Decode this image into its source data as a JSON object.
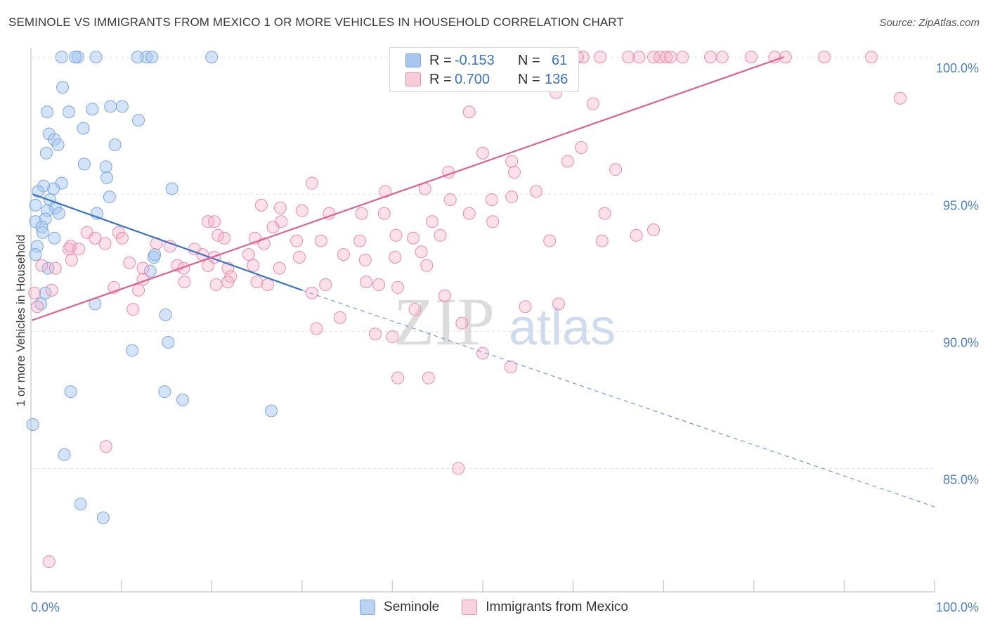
{
  "title": "SEMINOLE VS IMMIGRANTS FROM MEXICO 1 OR MORE VEHICLES IN HOUSEHOLD CORRELATION CHART",
  "source": "Source: ZipAtlas.com",
  "watermark": {
    "zip": "ZIP",
    "atlas": "atlas"
  },
  "legend_top": {
    "rows": [
      {
        "r_label": "R =",
        "r_value": "-0.153",
        "n_label": "N =",
        "n_value": "61",
        "color": "#a9c7ee"
      },
      {
        "r_label": "R =",
        "r_value": "0.700",
        "n_label": "N =",
        "n_value": "136",
        "color": "#f5b5c8"
      }
    ]
  },
  "legend_bottom": [
    {
      "label": "Seminole",
      "color": "#a9c7ee"
    },
    {
      "label": "Immigrants from Mexico",
      "color": "#f5b5c8"
    }
  ],
  "chart_data": {
    "type": "scatter",
    "title": "SEMINOLE VS IMMIGRANTS FROM MEXICO 1 OR MORE VEHICLES IN HOUSEHOLD CORRELATION CHART",
    "xlabel": "",
    "ylabel": "1 or more Vehicles in Household",
    "xlim": [
      0,
      100
    ],
    "ylim": [
      80.5,
      100.8
    ],
    "x_tick_labels": [
      "0.0%",
      "100.0%"
    ],
    "y_ticks": [
      85,
      90,
      95,
      100
    ],
    "y_tick_labels": [
      "85.0%",
      "90.0%",
      "95.0%",
      "100.0%"
    ],
    "grid": true,
    "series": [
      {
        "name": "Seminole",
        "color": "#7aa7e0",
        "points": [
          [
            3.4,
            100
          ],
          [
            5.2,
            100
          ],
          [
            4.9,
            100
          ],
          [
            12.8,
            100
          ],
          [
            20,
            100
          ],
          [
            7.2,
            100
          ],
          [
            3.5,
            98.9
          ],
          [
            1.8,
            98
          ],
          [
            4.2,
            98
          ],
          [
            6.8,
            98.1
          ],
          [
            8.8,
            98.2
          ],
          [
            10.1,
            98.2
          ],
          [
            11.9,
            97.7
          ],
          [
            5.8,
            97.4
          ],
          [
            2,
            97.2
          ],
          [
            2.6,
            97
          ],
          [
            3,
            96.8
          ],
          [
            9.3,
            96.8
          ],
          [
            1.7,
            96.5
          ],
          [
            5.9,
            96.1
          ],
          [
            8.3,
            96
          ],
          [
            8.4,
            95.6
          ],
          [
            3.4,
            95.4
          ],
          [
            2.5,
            95.2
          ],
          [
            1.4,
            95.3
          ],
          [
            0.8,
            95.1
          ],
          [
            15.6,
            95.2
          ],
          [
            8.7,
            94.9
          ],
          [
            2.1,
            94.8
          ],
          [
            0.5,
            94.6
          ],
          [
            2.7,
            94.5
          ],
          [
            1.8,
            94.4
          ],
          [
            3.1,
            94.3
          ],
          [
            7.3,
            94.3
          ],
          [
            1.6,
            94.1
          ],
          [
            0.5,
            94
          ],
          [
            1.2,
            93.8
          ],
          [
            1.3,
            93.6
          ],
          [
            2.6,
            93.4
          ],
          [
            0.7,
            93.1
          ],
          [
            0.5,
            92.8
          ],
          [
            13.6,
            92.7
          ],
          [
            13.7,
            92.8
          ],
          [
            1.9,
            92.3
          ],
          [
            13.2,
            92.2
          ],
          [
            1.6,
            91.4
          ],
          [
            1.1,
            91
          ],
          [
            7.1,
            91
          ],
          [
            14.9,
            90.6
          ],
          [
            15.2,
            89.6
          ],
          [
            11.2,
            89.3
          ],
          [
            4.4,
            87.8
          ],
          [
            14.8,
            87.8
          ],
          [
            16.8,
            87.5
          ],
          [
            26.6,
            87.1
          ],
          [
            0.2,
            86.6
          ],
          [
            3.7,
            85.5
          ],
          [
            5.5,
            83.7
          ],
          [
            8,
            83.2
          ],
          [
            11.8,
            100
          ],
          [
            13.4,
            100
          ]
        ],
        "trend": {
          "x0": 0.2,
          "y0": 95,
          "x1": 30,
          "y1": 91.5,
          "dash_x1": 100,
          "dash_y1": 83.6
        }
      },
      {
        "name": "Immigrants from Mexico",
        "color": "#ec8aa9",
        "points": [
          [
            47.5,
            100
          ],
          [
            48.2,
            100
          ],
          [
            55.6,
            100
          ],
          [
            57.8,
            100
          ],
          [
            60.5,
            100
          ],
          [
            61.1,
            100
          ],
          [
            66.1,
            100
          ],
          [
            67.3,
            100
          ],
          [
            68.9,
            100
          ],
          [
            69.6,
            100
          ],
          [
            70.3,
            100
          ],
          [
            70.8,
            100
          ],
          [
            72.1,
            100
          ],
          [
            75.2,
            100
          ],
          [
            76.5,
            100
          ],
          [
            79.7,
            100
          ],
          [
            83.5,
            100
          ],
          [
            87.8,
            100
          ],
          [
            93,
            100
          ],
          [
            53.5,
            100
          ],
          [
            63,
            100
          ],
          [
            82.3,
            100
          ],
          [
            56.6,
            100
          ],
          [
            58.7,
            99.2
          ],
          [
            48.5,
            98
          ],
          [
            62.2,
            98.3
          ],
          [
            58.1,
            98.7
          ],
          [
            96.2,
            98.5
          ],
          [
            50,
            96.5
          ],
          [
            53.5,
            95.8
          ],
          [
            46.2,
            95.8
          ],
          [
            53.2,
            96.2
          ],
          [
            59.4,
            96.2
          ],
          [
            60.9,
            96.7
          ],
          [
            64.7,
            95.9
          ],
          [
            31.1,
            95.4
          ],
          [
            39.2,
            95.1
          ],
          [
            43.6,
            95.2
          ],
          [
            46.4,
            94.8
          ],
          [
            51,
            94.8
          ],
          [
            53.2,
            94.9
          ],
          [
            55.9,
            95.1
          ],
          [
            25.5,
            94.6
          ],
          [
            27.6,
            94.5
          ],
          [
            30,
            94.4
          ],
          [
            33,
            94.3
          ],
          [
            36.6,
            94.3
          ],
          [
            39.1,
            94.3
          ],
          [
            44.4,
            94
          ],
          [
            48.5,
            94.3
          ],
          [
            51.1,
            94
          ],
          [
            63.5,
            94.3
          ],
          [
            19.6,
            94
          ],
          [
            20.3,
            94
          ],
          [
            26.8,
            93.8
          ],
          [
            27.7,
            94
          ],
          [
            20.7,
            93.5
          ],
          [
            21.4,
            93.4
          ],
          [
            24.8,
            93.4
          ],
          [
            29.4,
            93.3
          ],
          [
            25.8,
            93.2
          ],
          [
            32.1,
            93.3
          ],
          [
            36.4,
            93.3
          ],
          [
            40.4,
            93.5
          ],
          [
            45.3,
            93.5
          ],
          [
            57.4,
            93.3
          ],
          [
            63.2,
            93.3
          ],
          [
            67,
            93.5
          ],
          [
            68.9,
            93.7
          ],
          [
            6.2,
            93.6
          ],
          [
            7.1,
            93.4
          ],
          [
            8.2,
            93.2
          ],
          [
            9.7,
            93.6
          ],
          [
            10.1,
            93.4
          ],
          [
            13.9,
            93.2
          ],
          [
            15.4,
            93.1
          ],
          [
            18.1,
            93
          ],
          [
            19,
            92.8
          ],
          [
            20.3,
            92.7
          ],
          [
            24.1,
            92.8
          ],
          [
            34.6,
            92.8
          ],
          [
            37,
            92.6
          ],
          [
            40.3,
            92.7
          ],
          [
            43.2,
            92.9
          ],
          [
            42.3,
            93.4
          ],
          [
            10.9,
            92.5
          ],
          [
            12.4,
            92.3
          ],
          [
            16.2,
            92.4
          ],
          [
            16.9,
            92.3
          ],
          [
            19.6,
            92.4
          ],
          [
            21.8,
            92.3
          ],
          [
            22.1,
            92
          ],
          [
            24.6,
            92.4
          ],
          [
            27.5,
            92.3
          ],
          [
            29.7,
            92.7
          ],
          [
            1.2,
            92.4
          ],
          [
            2.7,
            92.3
          ],
          [
            4.5,
            92.6
          ],
          [
            4.2,
            93
          ],
          [
            4.4,
            93.1
          ],
          [
            5.3,
            93
          ],
          [
            9.2,
            91.6
          ],
          [
            11.9,
            91.5
          ],
          [
            12.4,
            91.9
          ],
          [
            17,
            91.8
          ],
          [
            20.5,
            91.7
          ],
          [
            21.8,
            91.8
          ],
          [
            25,
            91.8
          ],
          [
            32.6,
            91.7
          ],
          [
            37.1,
            91.8
          ],
          [
            40.6,
            91.6
          ],
          [
            43.8,
            92.4
          ],
          [
            2.3,
            91.5
          ],
          [
            0.4,
            91.4
          ],
          [
            0.7,
            90.9
          ],
          [
            11.3,
            90.8
          ],
          [
            26.2,
            91.7
          ],
          [
            31.1,
            91.4
          ],
          [
            38.5,
            91.7
          ],
          [
            42.5,
            90.8
          ],
          [
            45.8,
            91.3
          ],
          [
            47.7,
            90.3
          ],
          [
            54.7,
            90.9
          ],
          [
            58.4,
            91
          ],
          [
            38.1,
            89.9
          ],
          [
            40,
            89.8
          ],
          [
            44,
            88.3
          ],
          [
            34.2,
            90.5
          ],
          [
            31.6,
            90.1
          ],
          [
            40.6,
            88.3
          ],
          [
            50,
            89.2
          ],
          [
            53.1,
            88.7
          ],
          [
            47.3,
            85
          ],
          [
            8.3,
            85.8
          ],
          [
            2,
            81.6
          ]
        ],
        "trend": {
          "x0": 0.1,
          "y0": 90.4,
          "x1": 83.3,
          "y1": 100
        }
      }
    ]
  }
}
